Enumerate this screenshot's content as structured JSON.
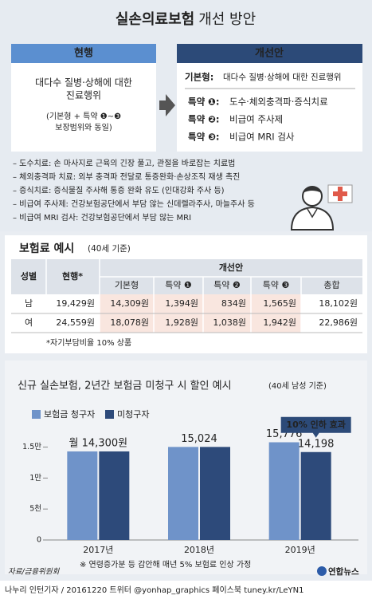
{
  "title_bold": "실손의료보험",
  "title_rest": "개선 방안",
  "current": {
    "header": "현행",
    "lines": [
      "대다수 질병·상해에 대한",
      "진료행위"
    ],
    "note": [
      "(기본형 + 특약 ❶~❸",
      "보장범위와 동일)"
    ]
  },
  "proposal": {
    "header": "개선안",
    "base_label": "기본형:",
    "base_text": "대다수 질병·상해에 대한 진료행위",
    "riders": [
      {
        "label": "특약 ❶:",
        "text": "도수·체외충격파·증식치료"
      },
      {
        "label": "특약 ❷:",
        "text": "비급여 주사제"
      },
      {
        "label": "특약 ❸:",
        "text": "비급여 MRI 검사"
      }
    ]
  },
  "notes": [
    "– 도수치료: 손 마사지로 근육의 긴장 풀고, 관절을 바로잡는 치료법",
    "– 체외충격파 치료: 외부 충격파 전달로 통증완화·손상조직 재생 촉진",
    "– 증식치료: 증식물질 주사해 통증 완화 유도 (인대강화 주사 등)",
    "– 비급여 주사제: 건강보험공단에서 부담 않는 신데렐라주사, 마늘주사 등",
    "– 비급여 MRI 검사: 건강보험공단에서 부담 않는 MRI"
  ],
  "table": {
    "title": "보험료 예시",
    "subtitle": "(40세 기준)",
    "headers": [
      "성별",
      "현행*",
      "개선안"
    ],
    "subheaders": [
      "기본형",
      "특약 ❶",
      "특약 ❷",
      "특약 ❸",
      "총합"
    ],
    "rows": [
      [
        "남",
        "19,429원",
        "14,309원",
        "1,394원",
        "834원",
        "1,565원",
        "18,102원"
      ],
      [
        "여",
        "24,559원",
        "18,078원",
        "1,928원",
        "1,038원",
        "1,942원",
        "22,986원"
      ]
    ],
    "footnote": "*자기부담비율 10% 상품"
  },
  "chart_data": {
    "type": "bar",
    "title": "신규 실손보험, 2년간 보험금 미청구 시 할인 예시",
    "subtitle": "(40세 남성 기준)",
    "categories": [
      "2017년",
      "2018년",
      "2019년"
    ],
    "series": [
      {
        "name": "보험금 청구자",
        "color": "#6f93c9",
        "values": [
          14300,
          15024,
          15776
        ],
        "value_labels": [
          "월 14,300원",
          "15,024",
          "15,776"
        ]
      },
      {
        "name": "미청구자",
        "color": "#2d4a7a",
        "values": [
          14300,
          15024,
          14198
        ],
        "value_labels": [
          null,
          null,
          "14,198"
        ]
      }
    ],
    "ylim": [
      0,
      17000
    ],
    "yticks": [
      0,
      {
        "value": 5000,
        "label": "5천"
      },
      {
        "value": 10000,
        "label": "1만"
      },
      {
        "value": 15000,
        "label": "1.5만"
      }
    ],
    "annotation": "10% 인하 효과",
    "footnote": "※ 연령증가분 등 감안해 매년 5% 보험료 인상 가정"
  },
  "source": "자료/금융위원회",
  "logo": "연합뉴스",
  "credit": "나누리 인턴기자 / 20161220 트위터 @yonhap_graphics 페이스북 tuney.kr/LeYN1"
}
